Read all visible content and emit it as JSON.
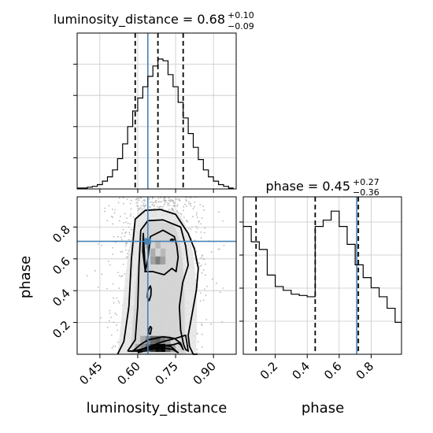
{
  "chart_data": {
    "type": "corner",
    "parameters": [
      "luminosity_distance",
      "phase"
    ],
    "truth": {
      "luminosity_distance": 0.64,
      "phase": 0.71
    },
    "truth_color": "#4682b4",
    "line_color": "#000000",
    "grid": true,
    "panels": {
      "luminosity_distance_hist": {
        "title": {
          "text": "luminosity_distance = 0.68",
          "plus": "+0.10",
          "minus": "−0.09"
        },
        "xlim": [
          0.36,
          0.99
        ],
        "bin_edges": [
          0.36,
          0.38,
          0.4,
          0.42,
          0.44,
          0.46,
          0.48,
          0.5,
          0.52,
          0.54,
          0.56,
          0.58,
          0.6,
          0.62,
          0.64,
          0.66,
          0.68,
          0.7,
          0.72,
          0.74,
          0.76,
          0.78,
          0.8,
          0.82,
          0.84,
          0.86,
          0.88,
          0.9,
          0.92,
          0.94,
          0.96,
          0.98
        ],
        "counts": [
          1,
          1,
          2,
          3,
          5,
          9,
          14,
          22,
          35,
          52,
          72,
          90,
          105,
          118,
          130,
          142,
          150,
          148,
          132,
          118,
          100,
          82,
          64,
          48,
          34,
          22,
          14,
          9,
          5,
          3,
          1
        ],
        "quantiles": [
          0.59,
          0.68,
          0.78
        ]
      },
      "phase_hist": {
        "title": {
          "text": "phase = 0.45",
          "plus": "+0.27",
          "minus": "−0.36"
        },
        "xlim": [
          0.0,
          0.99
        ],
        "bin_edges": [
          0.0,
          0.05,
          0.1,
          0.15,
          0.2,
          0.25,
          0.3,
          0.35,
          0.4,
          0.45,
          0.5,
          0.55,
          0.6,
          0.65,
          0.7,
          0.75,
          0.8,
          0.85,
          0.9,
          0.95,
          0.99
        ],
        "counts": [
          100,
          88,
          82,
          62,
          53,
          50,
          47,
          46,
          45,
          100,
          105,
          112,
          100,
          86,
          70,
          60,
          52,
          45,
          36,
          25
        ],
        "quantiles": [
          0.08,
          0.45,
          0.72
        ],
        "xticks": [
          0.2,
          0.4,
          0.6,
          0.8
        ],
        "xticklabels": [
          "0.2",
          "0.4",
          "0.6",
          "0.8"
        ],
        "xlabel": "phase"
      },
      "joint": {
        "xlim": [
          0.36,
          0.99
        ],
        "ylim": [
          0.0,
          0.99
        ],
        "xticks": [
          0.45,
          0.6,
          0.75,
          0.9
        ],
        "xticklabels": [
          "0.45",
          "0.60",
          "0.75",
          "0.90"
        ],
        "yticks": [
          0.2,
          0.4,
          0.6,
          0.8
        ],
        "yticklabels": [
          "0.2",
          "0.4",
          "0.6",
          "0.8"
        ],
        "xlabel": "luminosity_distance",
        "ylabel": "phase",
        "density_cells": [
          {
            "x": 0.64,
            "y": 0.04,
            "level": 0.55
          },
          {
            "x": 0.66,
            "y": 0.04,
            "level": 0.75
          },
          {
            "x": 0.68,
            "y": 0.04,
            "level": 0.95
          },
          {
            "x": 0.7,
            "y": 0.04,
            "level": 1.0
          },
          {
            "x": 0.72,
            "y": 0.04,
            "level": 0.6
          },
          {
            "x": 0.62,
            "y": 0.04,
            "level": 0.4
          },
          {
            "x": 0.6,
            "y": 0.04,
            "level": 0.25
          },
          {
            "x": 0.74,
            "y": 0.04,
            "level": 0.3
          },
          {
            "x": 0.64,
            "y": 0.09,
            "level": 0.4
          },
          {
            "x": 0.66,
            "y": 0.09,
            "level": 0.55
          },
          {
            "x": 0.68,
            "y": 0.09,
            "level": 0.6
          },
          {
            "x": 0.7,
            "y": 0.09,
            "level": 0.45
          },
          {
            "x": 0.62,
            "y": 0.09,
            "level": 0.25
          },
          {
            "x": 0.72,
            "y": 0.09,
            "level": 0.3
          },
          {
            "x": 0.66,
            "y": 0.59,
            "level": 0.3
          },
          {
            "x": 0.68,
            "y": 0.59,
            "level": 0.45
          },
          {
            "x": 0.7,
            "y": 0.59,
            "level": 0.3
          },
          {
            "x": 0.66,
            "y": 0.64,
            "level": 0.25
          },
          {
            "x": 0.7,
            "y": 0.64,
            "level": 0.2
          },
          {
            "x": 0.64,
            "y": 0.69,
            "level": 0.25
          },
          {
            "x": 0.68,
            "y": 0.69,
            "level": 0.2
          }
        ],
        "contours": [
          {
            "x": [
              0.65,
              0.652,
              0.655,
              0.65,
              0.645,
              0.642,
              0.65
            ],
            "y": [
              0.125,
              0.145,
              0.165,
              0.175,
              0.16,
              0.135,
              0.125
            ]
          },
          {
            "x": [
              0.645,
              0.652,
              0.653,
              0.65,
              0.64,
              0.638,
              0.645
            ],
            "y": [
              0.335,
              0.37,
              0.41,
              0.43,
              0.4,
              0.36,
              0.335
            ]
          },
          {
            "x": [
              0.728,
              0.735,
              0.742,
              0.735,
              0.728
            ],
            "y": [
              0.715,
              0.725,
              0.72,
              0.71,
              0.715
            ]
          },
          {
            "x": [
              0.63,
              0.64,
              0.65,
              0.7,
              0.745,
              0.755,
              0.76,
              0.752,
              0.735,
              0.705,
              0.66,
              0.628,
              0.63,
              0.62,
              0.622,
              0.63
            ],
            "y": [
              0.52,
              0.6,
              0.74,
              0.78,
              0.74,
              0.68,
              0.61,
              0.52,
              0.54,
              0.5,
              0.52,
              0.52,
              0.52,
              0.65,
              0.76,
              0.52
            ]
          },
          {
            "x": [
              0.56,
              0.59,
              0.6,
              0.605,
              0.612,
              0.64,
              0.7,
              0.77,
              0.79,
              0.8,
              0.778,
              0.765,
              0.77,
              0.782,
              0.79,
              0.8,
              0.79,
              0.75,
              0.7,
              0.65,
              0.61,
              0.58,
              0.56
            ],
            "y": [
              0.02,
              0.09,
              0.3,
              0.56,
              0.78,
              0.84,
              0.845,
              0.8,
              0.68,
              0.56,
              0.45,
              0.3,
              0.15,
              0.06,
              0.03,
              0.02,
              0.12,
              0.1,
              0.08,
              0.05,
              0.03,
              0.02,
              0.02
            ]
          },
          {
            "x": [
              0.58,
              0.61,
              0.64,
              0.7,
              0.745,
              0.77,
              0.78,
              0.77,
              0.76,
              0.74,
              0.7,
              0.65,
              0.62,
              0.6,
              0.59,
              0.58
            ],
            "y": [
              0.02,
              0.06,
              0.09,
              0.11,
              0.1,
              0.07,
              0.03,
              0.06,
              0.07,
              0.06,
              0.05,
              0.04,
              0.03,
              0.02,
              0.02,
              0.02
            ]
          },
          {
            "x": [
              0.6,
              0.63,
              0.68,
              0.73,
              0.76,
              0.74,
              0.7,
              0.65,
              0.6
            ],
            "y": [
              0.01,
              0.04,
              0.06,
              0.05,
              0.01,
              0.03,
              0.04,
              0.03,
              0.01
            ]
          },
          {
            "x": [
              0.52,
              0.545,
              0.565,
              0.575,
              0.59,
              0.63,
              0.69,
              0.75,
              0.8,
              0.825,
              0.84,
              0.832,
              0.815,
              0.8,
              0.805,
              0.82,
              0.835,
              0.83
            ],
            "y": [
              0.0,
              0.08,
              0.3,
              0.6,
              0.85,
              0.905,
              0.91,
              0.88,
              0.76,
              0.66,
              0.54,
              0.4,
              0.25,
              0.12,
              0.05,
              0.0,
              0.0,
              0.0
            ]
          }
        ]
      }
    }
  }
}
